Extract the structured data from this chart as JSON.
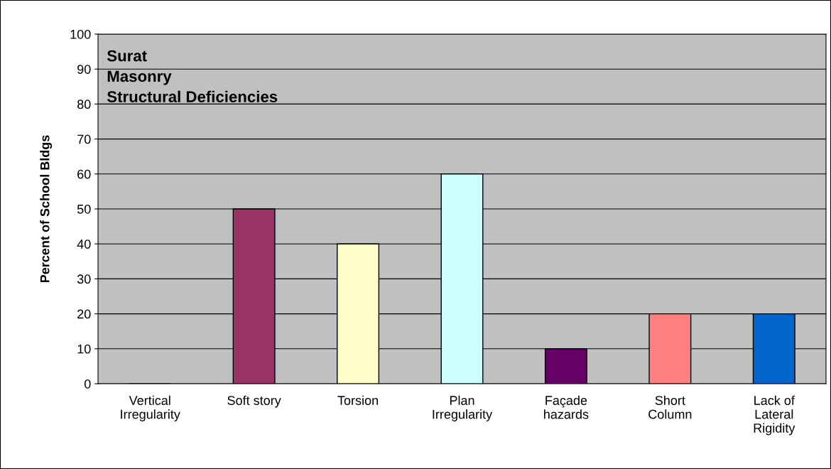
{
  "chart_data": {
    "type": "bar",
    "title": "Surat\nMasonry\nStructural Deficiencies",
    "ylabel": "Percent of School Bldgs",
    "categories": [
      "Vertical\nIrregularity",
      "Soft story",
      "Torsion",
      "Plan\nIrregularity",
      "Façade\nhazards",
      "Short\nColumn",
      "Lack of\nLateral\nRigidity"
    ],
    "values": [
      0,
      50,
      40,
      60,
      10,
      20,
      20
    ],
    "colors": [
      "#000000",
      "#993366",
      "#ffffcc",
      "#ccffff",
      "#660066",
      "#ff8080",
      "#0066cc"
    ],
    "ylim": [
      0,
      100
    ],
    "yticks": [
      0,
      10,
      20,
      30,
      40,
      50,
      60,
      70,
      80,
      90,
      100
    ],
    "grid": "y"
  }
}
